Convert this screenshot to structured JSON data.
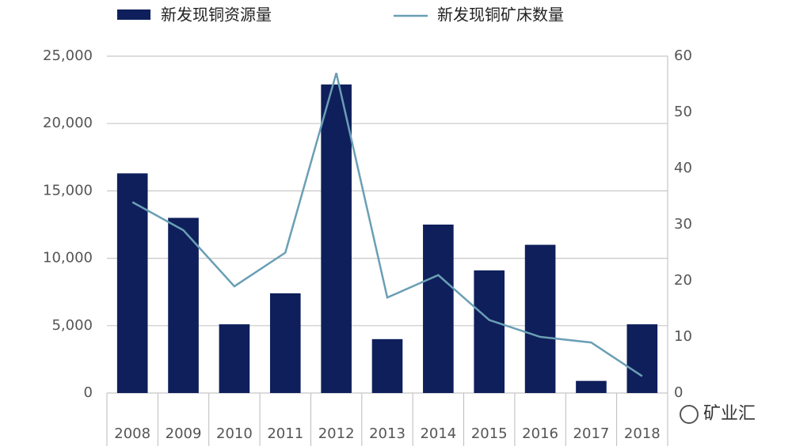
{
  "chart_data": {
    "type": "bar-line",
    "categories": [
      "2008",
      "2009",
      "2010",
      "2011",
      "2012",
      "2013",
      "2014",
      "2015",
      "2016",
      "2017",
      "2018"
    ],
    "series": [
      {
        "name": "新发现铜资源量",
        "type": "bar",
        "color": "#0e1f5b",
        "values": [
          16300,
          13000,
          5100,
          7400,
          22900,
          4000,
          12500,
          9100,
          11000,
          900,
          5100
        ]
      },
      {
        "name": "新发现铜矿床数量",
        "type": "line",
        "axis": "y2",
        "color": "#6a9fb5",
        "values": [
          34,
          29,
          19,
          25,
          57,
          17,
          21,
          13,
          10,
          9,
          3
        ]
      }
    ],
    "ylim": [
      0,
      25000
    ],
    "yticks": [
      0,
      {
        "value": 5000,
        "label": "5,000"
      },
      {
        "value": 10000,
        "label": "10,000"
      },
      {
        "value": 15000,
        "label": "15,000"
      },
      {
        "value": 20000,
        "label": "20,000"
      },
      {
        "value": 25000,
        "label": "25,000"
      }
    ],
    "y2lim": [
      0,
      60
    ],
    "y2ticks": [
      0,
      10,
      20,
      30,
      40,
      50,
      60
    ],
    "grid": true,
    "legend": "top",
    "watermark": "矿业汇"
  }
}
